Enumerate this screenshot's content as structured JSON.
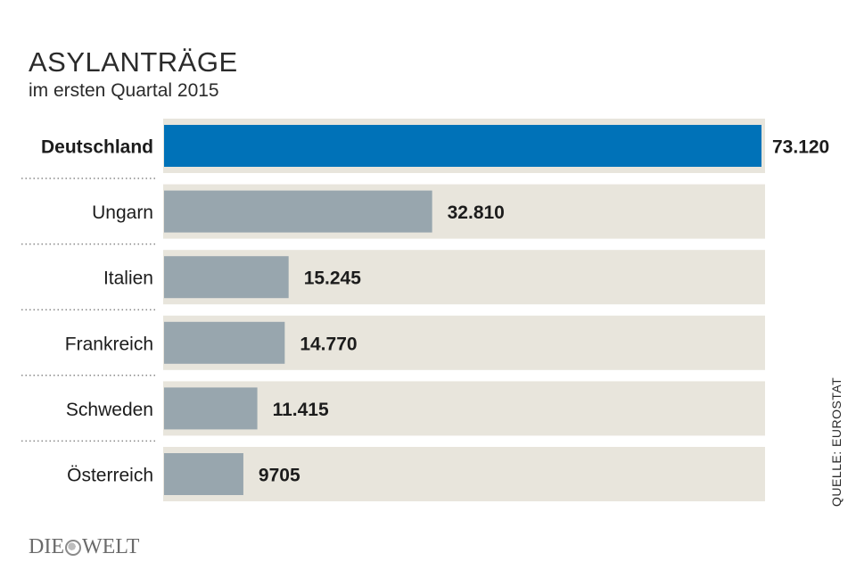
{
  "title": "ASYLANTRÄGE",
  "subtitle": "im ersten Quartal 2015",
  "source": "QUELLE: EUROSTAT",
  "logo": {
    "left": "DIE",
    "right": "WELT"
  },
  "colors": {
    "highlight_bar": "#0072b8",
    "bar": "#98a6ae",
    "track": "#e8e5dc",
    "text": "#1c1c1c",
    "dots": "#888888"
  },
  "chart_data": {
    "type": "bar",
    "orientation": "horizontal",
    "title": "ASYLANTRÄGE",
    "subtitle": "im ersten Quartal 2015",
    "categories": [
      "Deutschland",
      "Ungarn",
      "Italien",
      "Frankreich",
      "Schweden",
      "Österreich"
    ],
    "values": [
      73120,
      32810,
      15245,
      14770,
      11415,
      9705
    ],
    "value_labels": [
      "73.120",
      "32.810",
      "15.245",
      "14.770",
      "11.415",
      "9705"
    ],
    "highlight": "Deutschland",
    "xlim": [
      0,
      73120
    ],
    "grid": false,
    "legend": "none"
  }
}
